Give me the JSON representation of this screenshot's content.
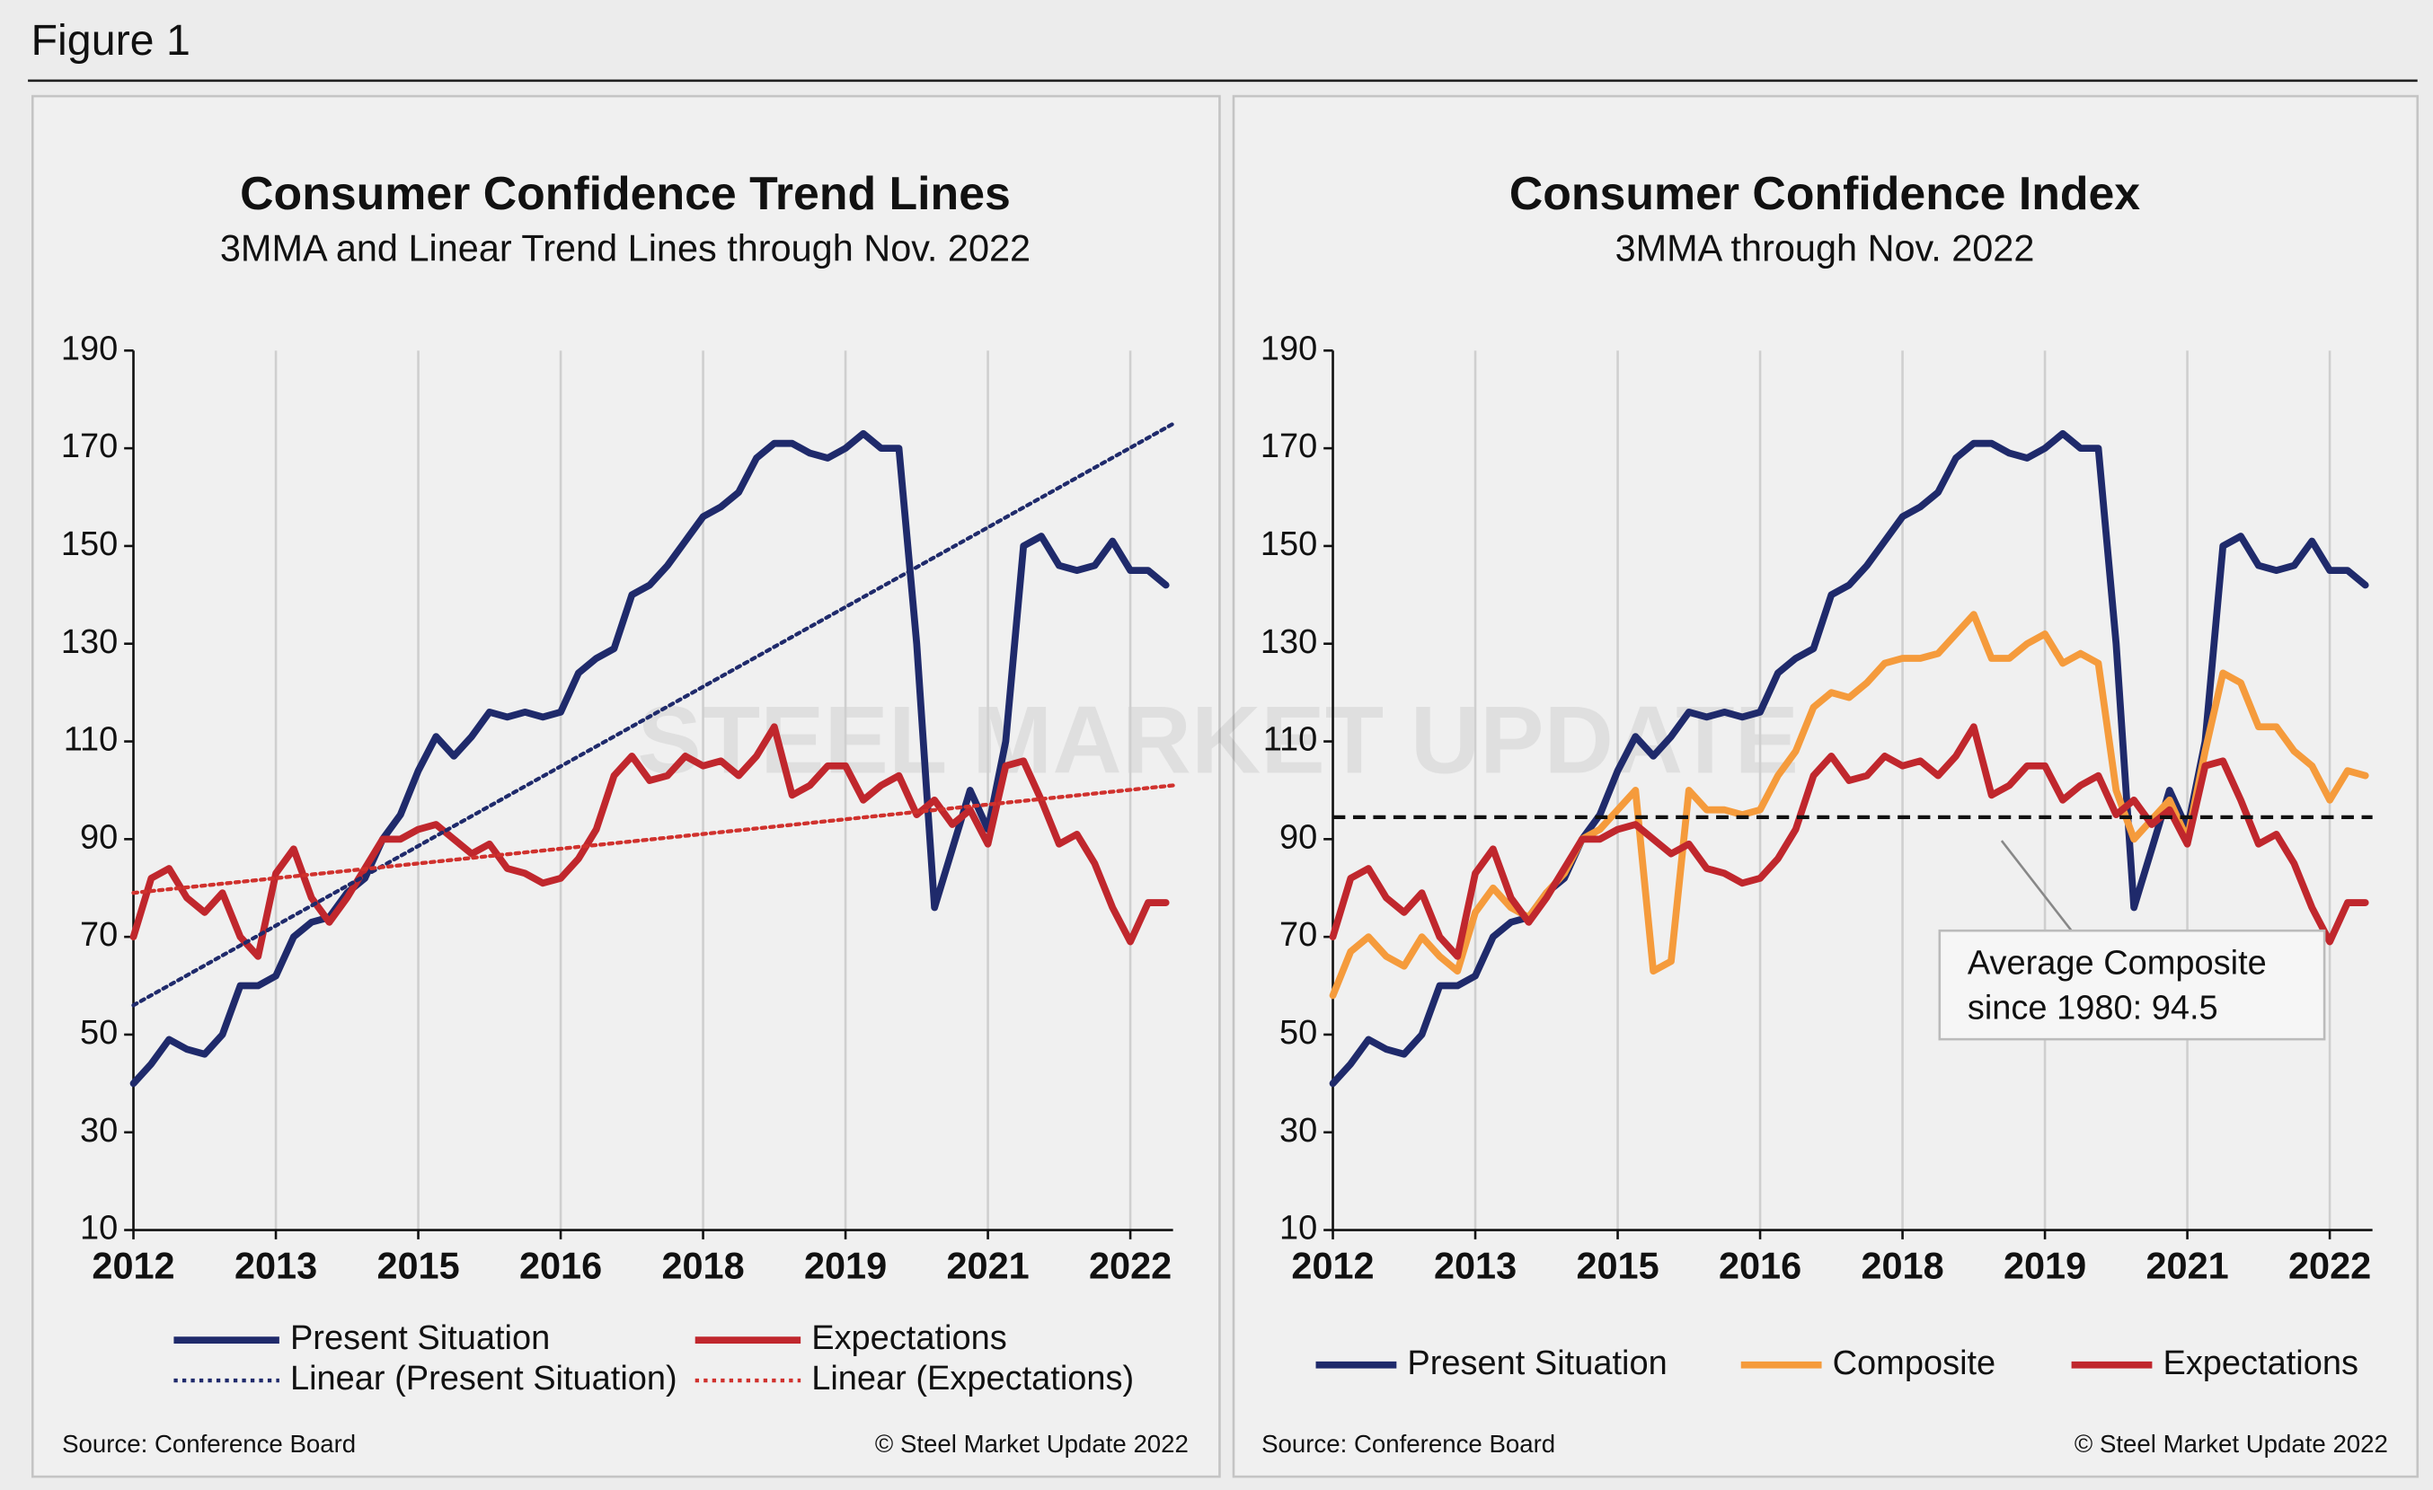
{
  "header": "Figure 1",
  "watermark": "STEEL MARKET UPDATE",
  "chart_data": [
    {
      "type": "line",
      "title": "Consumer Confidence Trend Lines",
      "subtitle": "3MMA and Linear Trend Lines through Nov. 2022",
      "source": "Source: Conference Board",
      "credit": "© Steel Market Update 2022",
      "xlim": [
        0,
        7.3
      ],
      "xticks": [
        {
          "value": 0,
          "label": "2012"
        },
        {
          "value": 1,
          "label": "2013"
        },
        {
          "value": 2,
          "label": "2015"
        },
        {
          "value": 3,
          "label": "2016"
        },
        {
          "value": 4,
          "label": "2018"
        },
        {
          "value": 5,
          "label": "2019"
        },
        {
          "value": 6,
          "label": "2021"
        },
        {
          "value": 7,
          "label": "2022"
        }
      ],
      "ylim": [
        10,
        190
      ],
      "yticks": [
        10,
        30,
        50,
        70,
        90,
        110,
        130,
        150,
        170,
        190
      ],
      "grid": true,
      "x": [
        0,
        0.125,
        0.25,
        0.375,
        0.5,
        0.625,
        0.75,
        0.875,
        1,
        1.125,
        1.25,
        1.375,
        1.5,
        1.625,
        1.75,
        1.875,
        2,
        2.125,
        2.25,
        2.375,
        2.5,
        2.625,
        2.75,
        2.875,
        3,
        3.125,
        3.25,
        3.375,
        3.5,
        3.625,
        3.75,
        3.875,
        4,
        4.125,
        4.25,
        4.375,
        4.5,
        4.625,
        4.75,
        4.875,
        5,
        5.125,
        5.25,
        5.375,
        5.5,
        5.625,
        5.75,
        5.875,
        6,
        6.125,
        6.25,
        6.375,
        6.5,
        6.625,
        6.75,
        6.875,
        7,
        7.125,
        7.25
      ],
      "series": [
        {
          "name": "Present Situation",
          "color": "#1f2a6b",
          "style": "solid",
          "values": [
            40,
            44,
            49,
            47,
            46,
            50,
            60,
            60,
            62,
            70,
            73,
            74,
            79,
            82,
            90,
            95,
            104,
            111,
            107,
            111,
            116,
            115,
            116,
            115,
            116,
            124,
            127,
            129,
            140,
            142,
            146,
            151,
            156,
            158,
            161,
            168,
            171,
            171,
            169,
            168,
            170,
            173,
            170,
            170,
            130,
            76,
            88,
            100,
            92,
            110,
            150,
            152,
            146,
            145,
            146,
            151,
            145,
            145,
            142
          ]
        },
        {
          "name": "Expectations",
          "color": "#c0272d",
          "style": "solid",
          "values": [
            70,
            82,
            84,
            78,
            75,
            79,
            70,
            66,
            83,
            88,
            78,
            73,
            78,
            84,
            90,
            90,
            92,
            93,
            90,
            87,
            89,
            84,
            83,
            81,
            82,
            86,
            92,
            103,
            107,
            102,
            103,
            107,
            105,
            106,
            103,
            107,
            113,
            99,
            101,
            105,
            105,
            98,
            101,
            103,
            95,
            98,
            93,
            96,
            89,
            105,
            106,
            98,
            89,
            91,
            85,
            76,
            69,
            77,
            77
          ]
        },
        {
          "name": "Linear (Present Situation)",
          "color": "#1f2a6b",
          "style": "dotted",
          "x": [
            0,
            7.3
          ],
          "values": [
            56,
            175
          ]
        },
        {
          "name": "Linear (Expectations)",
          "color": "#d0312d",
          "style": "dotted",
          "x": [
            0,
            7.3
          ],
          "values": [
            79,
            101
          ]
        }
      ]
    },
    {
      "type": "line",
      "title": "Consumer Confidence Index",
      "subtitle": "3MMA through Nov. 2022",
      "source": "Source: Conference Board",
      "credit": "© Steel Market Update 2022",
      "xlim": [
        0,
        7.3
      ],
      "xticks": [
        {
          "value": 0,
          "label": "2012"
        },
        {
          "value": 1,
          "label": "2013"
        },
        {
          "value": 2,
          "label": "2015"
        },
        {
          "value": 3,
          "label": "2016"
        },
        {
          "value": 4,
          "label": "2018"
        },
        {
          "value": 5,
          "label": "2019"
        },
        {
          "value": 6,
          "label": "2021"
        },
        {
          "value": 7,
          "label": "2022"
        }
      ],
      "ylim": [
        10,
        190
      ],
      "yticks": [
        10,
        30,
        50,
        70,
        90,
        110,
        130,
        150,
        170,
        190
      ],
      "grid": true,
      "reference_value": 94.5,
      "annotation": [
        "Average Composite",
        "since 1980: 94.5"
      ],
      "x": [
        0,
        0.125,
        0.25,
        0.375,
        0.5,
        0.625,
        0.75,
        0.875,
        1,
        1.125,
        1.25,
        1.375,
        1.5,
        1.625,
        1.75,
        1.875,
        2,
        2.125,
        2.25,
        2.375,
        2.5,
        2.625,
        2.75,
        2.875,
        3,
        3.125,
        3.25,
        3.375,
        3.5,
        3.625,
        3.75,
        3.875,
        4,
        4.125,
        4.25,
        4.375,
        4.5,
        4.625,
        4.75,
        4.875,
        5,
        5.125,
        5.25,
        5.375,
        5.5,
        5.625,
        5.75,
        5.875,
        6,
        6.125,
        6.25,
        6.375,
        6.5,
        6.625,
        6.75,
        6.875,
        7,
        7.125,
        7.25
      ],
      "series": [
        {
          "name": "Present Situation",
          "color": "#1f2a6b",
          "style": "solid",
          "values": [
            40,
            44,
            49,
            47,
            46,
            50,
            60,
            60,
            62,
            70,
            73,
            74,
            79,
            82,
            90,
            95,
            104,
            111,
            107,
            111,
            116,
            115,
            116,
            115,
            116,
            124,
            127,
            129,
            140,
            142,
            146,
            151,
            156,
            158,
            161,
            168,
            171,
            171,
            169,
            168,
            170,
            173,
            170,
            170,
            130,
            76,
            88,
            100,
            92,
            110,
            150,
            152,
            146,
            145,
            146,
            151,
            145,
            145,
            142
          ]
        },
        {
          "name": "Composite",
          "color": "#f59b3c",
          "style": "solid",
          "values": [
            58,
            67,
            70,
            66,
            64,
            70,
            66,
            63,
            75,
            80,
            76,
            74,
            79,
            83,
            90,
            92,
            96,
            100,
            63,
            65,
            100,
            96,
            96,
            95,
            96,
            103,
            108,
            117,
            120,
            119,
            122,
            126,
            127,
            127,
            128,
            132,
            136,
            127,
            127,
            130,
            132,
            126,
            128,
            126,
            100,
            90,
            94,
            98,
            90,
            108,
            124,
            122,
            113,
            113,
            108,
            105,
            98,
            104,
            103
          ]
        },
        {
          "name": "Expectations",
          "color": "#c0272d",
          "style": "solid",
          "values": [
            70,
            82,
            84,
            78,
            75,
            79,
            70,
            66,
            83,
            88,
            78,
            73,
            78,
            84,
            90,
            90,
            92,
            93,
            90,
            87,
            89,
            84,
            83,
            81,
            82,
            86,
            92,
            103,
            107,
            102,
            103,
            107,
            105,
            106,
            103,
            107,
            113,
            99,
            101,
            105,
            105,
            98,
            101,
            103,
            95,
            98,
            93,
            96,
            89,
            105,
            106,
            98,
            89,
            91,
            85,
            76,
            69,
            77,
            77
          ]
        }
      ]
    }
  ]
}
